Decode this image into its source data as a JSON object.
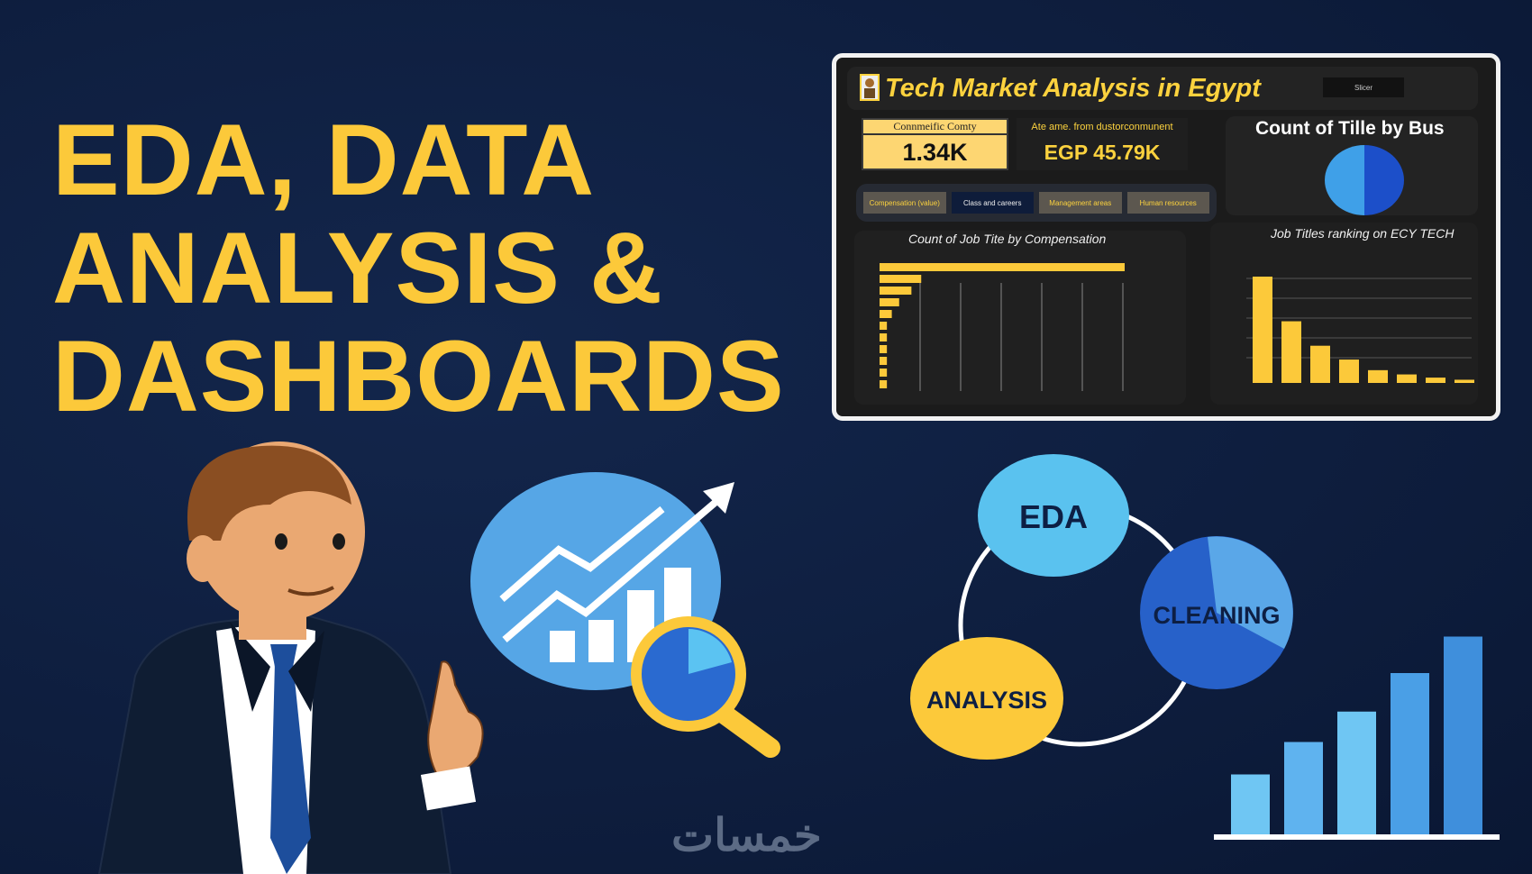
{
  "headline": {
    "lines": [
      "EDA, DATA",
      "ANALYSIS &",
      "DASHBOARDS"
    ],
    "color": "#fcc93a"
  },
  "dashboard": {
    "title": "Tech Market Analysis in Egypt",
    "top_box": "Slicer",
    "kpi_count": {
      "label": "Connmeific Comty",
      "value": "1.34K"
    },
    "kpi_avg": {
      "label": "Ate ame. from dustorconmunent",
      "value": "EGP 45.79K"
    },
    "filter_buttons": [
      "Compensation (value)",
      "Class and careers",
      "Management areas",
      "Human resources"
    ],
    "pie": {
      "title": "Count of Tille by Bus",
      "values": [
        50,
        50
      ],
      "colors": [
        "#3fa0e8",
        "#1c4fc9"
      ]
    },
    "hbar": {
      "title": "Count of Job Tite by Compensation",
      "values": [
        100,
        17,
        13,
        8,
        5,
        3,
        3,
        3,
        3,
        3,
        3
      ],
      "color": "#fcc93a"
    },
    "vbar": {
      "title": "Job Titles ranking on ECY TECH",
      "values": [
        100,
        58,
        35,
        22,
        12,
        8,
        5,
        3
      ],
      "color": "#fcc93a"
    }
  },
  "cycle": {
    "eda": "EDA",
    "cleaning": "CLEANING",
    "analysis": "ANALYSIS"
  },
  "bar_graphic": {
    "values": [
      30,
      46,
      61,
      80,
      98
    ],
    "color": "#4a9fe6"
  },
  "watermark": "خمسات"
}
